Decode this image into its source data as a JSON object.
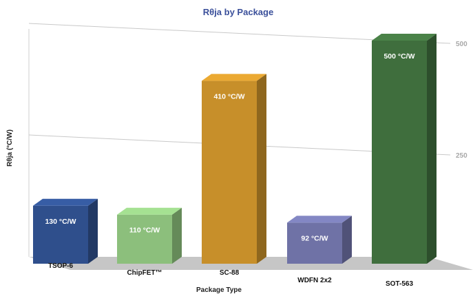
{
  "chart_data": {
    "type": "bar",
    "title": "Rθja by Package",
    "xlabel": "Package Type",
    "ylabel": "Rθja (°C/W)",
    "categories": [
      "TSOP-6",
      "ChipFET™",
      "SC-88",
      "WDFN 2x2",
      "SOT-563"
    ],
    "values": [
      130,
      110,
      410,
      92,
      500
    ],
    "data_labels": [
      "130 °C/W",
      "110 °C/W",
      "410 °C/W",
      "92 °C/W",
      "500 °C/W"
    ],
    "colors": [
      "#2f4f8c",
      "#8cbf7c",
      "#c78f2a",
      "#6f72a6",
      "#3f6e3d"
    ],
    "ylim": [
      0,
      500
    ],
    "yticks": [
      "250",
      "500"
    ],
    "ytick_values": [
      250,
      500
    ],
    "grid": true,
    "style": "3d"
  }
}
